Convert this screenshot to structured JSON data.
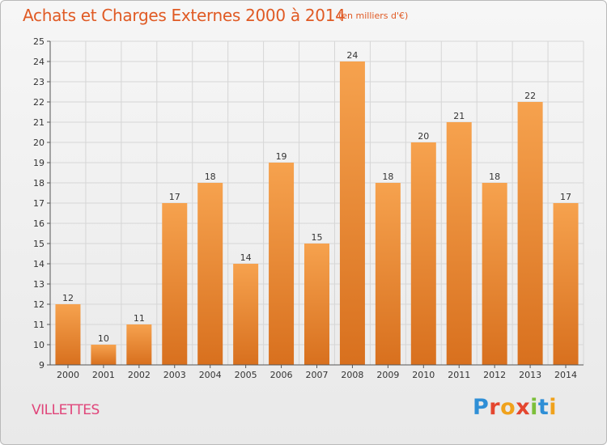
{
  "title": "Achats et Charges Externes 2000 à 2014",
  "subtitle": "(en milliers d'€)",
  "commune": "VILLETTES",
  "logo": {
    "letters": [
      "P",
      "r",
      "o",
      "x",
      "i",
      "t",
      "i"
    ]
  },
  "colors": {
    "bar_top": "#f6a24e",
    "bar_bottom": "#d8701e",
    "title": "#e05a24",
    "commune": "#e0457a",
    "grid": "#d6d6d6"
  },
  "chart_data": {
    "type": "bar",
    "title": "Achats et Charges Externes 2000 à 2014",
    "subtitle": "(en milliers d'€)",
    "categories": [
      "2000",
      "2001",
      "2002",
      "2003",
      "2004",
      "2005",
      "2006",
      "2007",
      "2008",
      "2009",
      "2010",
      "2011",
      "2012",
      "2013",
      "2014"
    ],
    "values": [
      12,
      10,
      11,
      17,
      18,
      14,
      19,
      15,
      24,
      18,
      20,
      21,
      18,
      22,
      17
    ],
    "ylim": [
      9,
      25
    ],
    "yticks": [
      9,
      10,
      11,
      12,
      13,
      14,
      15,
      16,
      17,
      18,
      19,
      20,
      21,
      22,
      23,
      24,
      25
    ],
    "grid": true,
    "legend": "none"
  }
}
